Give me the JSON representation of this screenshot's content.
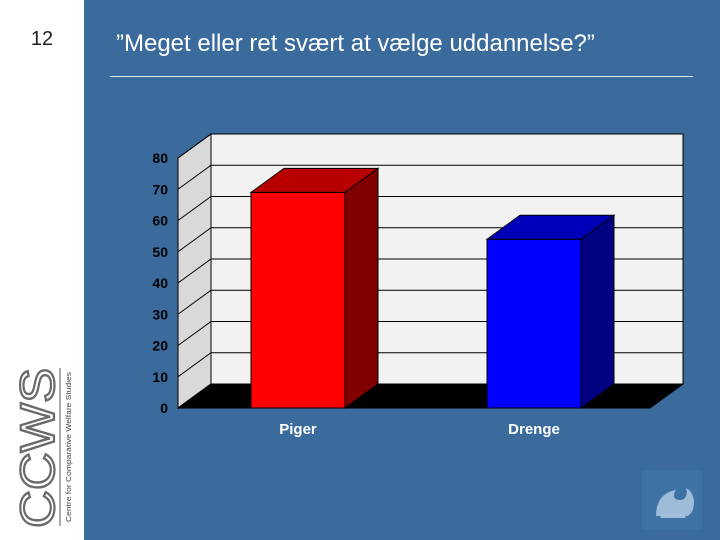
{
  "slide": {
    "number": "12",
    "title": "”Meget eller ret svært at vælge uddannelse?”",
    "logo_text": "CCWS",
    "logo_subtitle": "Centre for Comparative Welfare Studies"
  },
  "colors": {
    "background": "#3a6b9c",
    "sidebar": "#ffffff",
    "plot_wall": "#f2f2f2",
    "floor": "#000000",
    "bar_piger": "#ff0000",
    "bar_drenge": "#0000ff"
  },
  "chart_data": {
    "type": "bar",
    "style": "3d",
    "categories": [
      "Piger",
      "Drenge"
    ],
    "values": [
      69,
      54
    ],
    "colors": [
      "#ff0000",
      "#0000ff"
    ],
    "ylim": [
      0,
      80
    ],
    "yticks": [
      "0",
      "10",
      "20",
      "30",
      "40",
      "50",
      "60",
      "70",
      "80"
    ],
    "grid": true,
    "legend": "none",
    "title": "",
    "xlabel": "",
    "ylabel": ""
  }
}
